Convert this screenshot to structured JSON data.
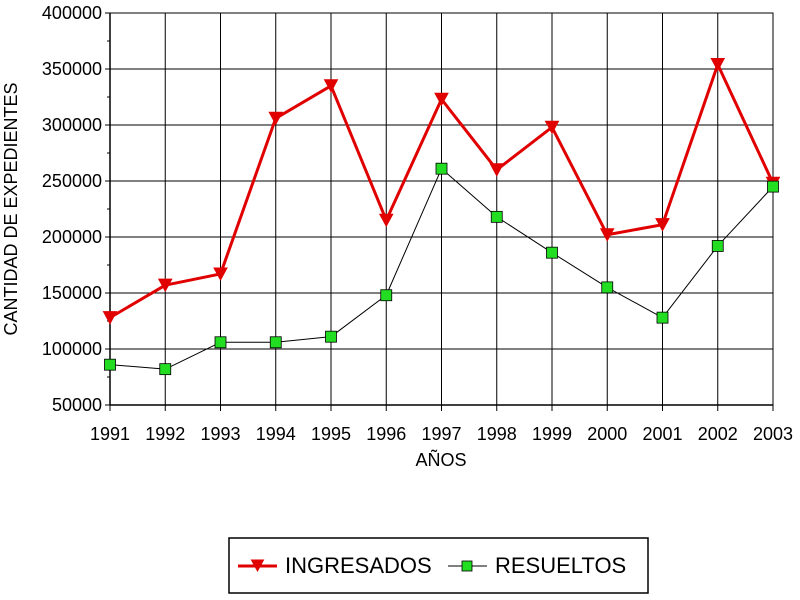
{
  "chart_data": {
    "type": "line",
    "title": "",
    "xlabel": "AÑOS",
    "ylabel": "CANTIDAD DE EXPEDIENTES",
    "categories": [
      "1991",
      "1992",
      "1993",
      "1994",
      "1995",
      "1996",
      "1997",
      "1998",
      "1999",
      "2000",
      "2001",
      "2002",
      "2003"
    ],
    "ylim": [
      50000,
      400000
    ],
    "y_ticks": [
      50000,
      100000,
      150000,
      200000,
      250000,
      300000,
      350000,
      400000
    ],
    "y_tick_labels": [
      "50000",
      "100000",
      "150000",
      "200000",
      "250000",
      "300000",
      "350000",
      "400000"
    ],
    "grid": true,
    "legend_position": "bottom",
    "series": [
      {
        "name": "INGRESADOS",
        "color": "#e00000",
        "marker": "triangle-down",
        "values": [
          128000,
          157000,
          167000,
          306000,
          335000,
          215000,
          323000,
          260000,
          298000,
          202000,
          211000,
          354000,
          248000
        ]
      },
      {
        "name": "RESUELTOS",
        "color": "#000000",
        "marker_color": "#22dd22",
        "marker": "square",
        "values": [
          86000,
          82000,
          106000,
          106000,
          111000,
          148000,
          261000,
          218000,
          186000,
          155000,
          128000,
          192000,
          245000
        ]
      }
    ]
  }
}
